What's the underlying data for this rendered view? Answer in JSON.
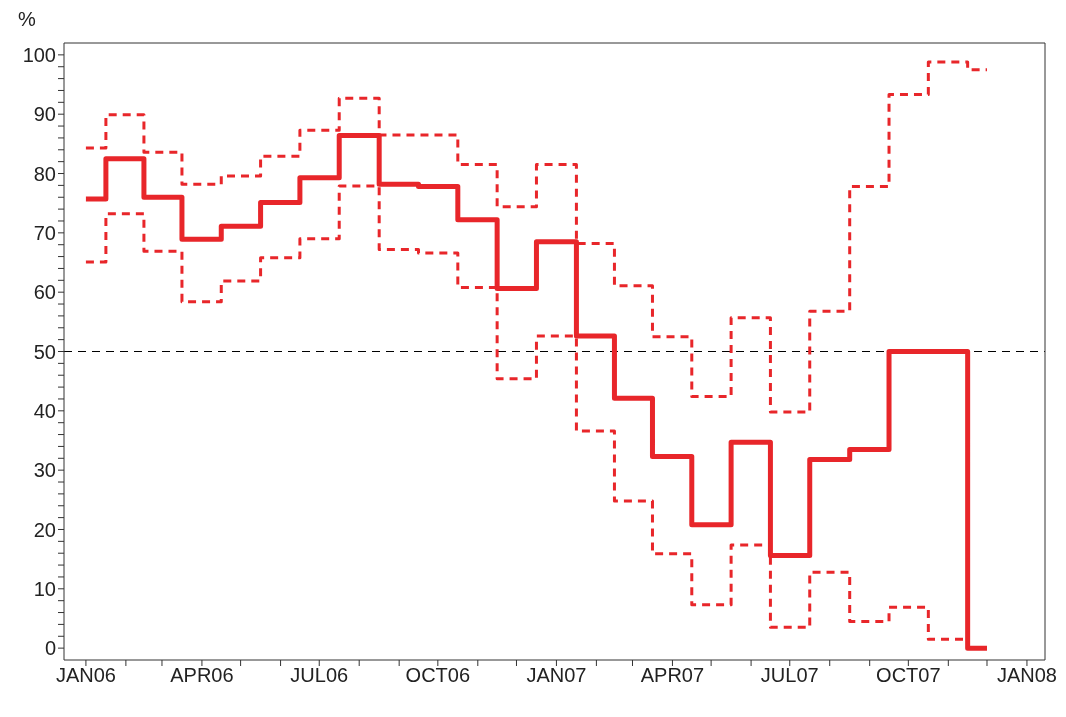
{
  "chart_data": {
    "type": "step",
    "ylabel": "%",
    "x": [
      "2006-01",
      "2006-02",
      "2006-03",
      "2006-04",
      "2006-05",
      "2006-06",
      "2006-07",
      "2006-08",
      "2006-09",
      "2006-10",
      "2006-11",
      "2006-12",
      "2007-01",
      "2007-02",
      "2007-03",
      "2007-04",
      "2007-05",
      "2007-06",
      "2007-07",
      "2007-08",
      "2007-09",
      "2007-10",
      "2007-11",
      "2007-12"
    ],
    "series": [
      {
        "color": "#e8262a",
        "line_style": "dashed",
        "values": [
          84.3,
          89.9,
          83.6,
          78.2,
          79.6,
          82.9,
          87.3,
          92.7,
          86.5,
          86.5,
          81.5,
          74.4,
          81.5,
          68.2,
          61.1,
          52.5,
          42.4,
          55.7,
          39.8,
          56.8,
          77.8,
          93.3,
          98.8,
          97.5
        ]
      },
      {
        "color": "#e8262a",
        "line_style": "solid",
        "values": [
          75.7,
          82.5,
          76,
          68.9,
          71.1,
          75.1,
          79.3,
          86.4,
          78.2,
          77.8,
          72.2,
          60.6,
          68.5,
          52.6,
          42.1,
          32.3,
          20.8,
          34.7,
          15.6,
          31.8,
          33.5,
          50,
          50,
          0
        ]
      },
      {
        "color": "#e8262a",
        "line_style": "dashed",
        "values": [
          65.1,
          73.2,
          66.9,
          58.4,
          61.9,
          65.8,
          69,
          77.9,
          67.2,
          66.6,
          60.8,
          45.4,
          52.6,
          36.6,
          24.8,
          15.9,
          7.3,
          17.4,
          3.5,
          12.8,
          4.5,
          6.9,
          1.5,
          0
        ]
      }
    ],
    "xlim": [
      "2005-12-15",
      "2008-01-15"
    ],
    "xticks": [
      {
        "value": "2006-01",
        "label": "JAN06"
      },
      {
        "value": "2006-02",
        "label": null
      },
      {
        "value": "2006-03",
        "label": null
      },
      {
        "value": "2006-04",
        "label": "APR06"
      },
      {
        "value": "2006-05",
        "label": null
      },
      {
        "value": "2006-06",
        "label": null
      },
      {
        "value": "2006-07",
        "label": "JUL06"
      },
      {
        "value": "2006-08",
        "label": null
      },
      {
        "value": "2006-09",
        "label": null
      },
      {
        "value": "2006-10",
        "label": "OCT06"
      },
      {
        "value": "2006-11",
        "label": null
      },
      {
        "value": "2006-12",
        "label": null
      },
      {
        "value": "2007-01",
        "label": "JAN07"
      },
      {
        "value": "2007-02",
        "label": null
      },
      {
        "value": "2007-03",
        "label": null
      },
      {
        "value": "2007-04",
        "label": "APR07"
      },
      {
        "value": "2007-05",
        "label": null
      },
      {
        "value": "2007-06",
        "label": null
      },
      {
        "value": "2007-07",
        "label": "JUL07"
      },
      {
        "value": "2007-08",
        "label": null
      },
      {
        "value": "2007-09",
        "label": null
      },
      {
        "value": "2007-10",
        "label": "OCT07"
      },
      {
        "value": "2007-11",
        "label": null
      },
      {
        "value": "2007-12",
        "label": null
      },
      {
        "value": "2008-01",
        "label": "JAN08"
      }
    ],
    "ylim": [
      -2,
      102
    ],
    "yticks": [
      0,
      {
        "value": 2,
        "label": null
      },
      {
        "value": 4,
        "label": null
      },
      {
        "value": 6,
        "label": null
      },
      {
        "value": 8,
        "label": null
      },
      10,
      {
        "value": 12,
        "label": null
      },
      {
        "value": 14,
        "label": null
      },
      {
        "value": 16,
        "label": null
      },
      {
        "value": 18,
        "label": null
      },
      20,
      {
        "value": 22,
        "label": null
      },
      {
        "value": 24,
        "label": null
      },
      {
        "value": 26,
        "label": null
      },
      {
        "value": 28,
        "label": null
      },
      30,
      {
        "value": 32,
        "label": null
      },
      {
        "value": 34,
        "label": null
      },
      {
        "value": 36,
        "label": null
      },
      {
        "value": 38,
        "label": null
      },
      40,
      {
        "value": 42,
        "label": null
      },
      {
        "value": 44,
        "label": null
      },
      {
        "value": 46,
        "label": null
      },
      {
        "value": 48,
        "label": null
      },
      50,
      {
        "value": 52,
        "label": null
      },
      {
        "value": 54,
        "label": null
      },
      {
        "value": 56,
        "label": null
      },
      {
        "value": 58,
        "label": null
      },
      60,
      {
        "value": 62,
        "label": null
      },
      {
        "value": 64,
        "label": null
      },
      {
        "value": 66,
        "label": null
      },
      {
        "value": 68,
        "label": null
      },
      70,
      {
        "value": 72,
        "label": null
      },
      {
        "value": 74,
        "label": null
      },
      {
        "value": 76,
        "label": null
      },
      {
        "value": 78,
        "label": null
      },
      80,
      {
        "value": 82,
        "label": null
      },
      {
        "value": 84,
        "label": null
      },
      {
        "value": 86,
        "label": null
      },
      {
        "value": 88,
        "label": null
      },
      90,
      {
        "value": 92,
        "label": null
      },
      {
        "value": 94,
        "label": null
      },
      {
        "value": 96,
        "label": null
      },
      {
        "value": 98,
        "label": null
      },
      100
    ],
    "ref_lines": [
      {
        "axis": "y",
        "value": 50,
        "color": "#000000",
        "line_style": "dashed"
      }
    ],
    "marker": "none"
  }
}
